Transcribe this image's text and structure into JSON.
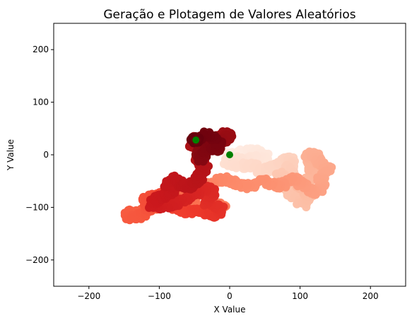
{
  "chart_data": {
    "type": "scatter",
    "title": "Geração e Plotagem de Valores Aleatórios",
    "xlabel": "X Value",
    "ylabel": "Y Value",
    "xlim": [
      -250,
      250
    ],
    "ylim": [
      -250,
      250
    ],
    "x_ticks": [
      -200,
      -100,
      0,
      100,
      200
    ],
    "y_ticks": [
      -200,
      -100,
      0,
      100,
      200
    ],
    "x_tick_labels": [
      "−200",
      "−100",
      "0",
      "100",
      "200"
    ],
    "y_tick_labels": [
      "−200",
      "−100",
      "0",
      "100",
      "200"
    ],
    "grid": false,
    "legend": "none",
    "colormap": "Reds",
    "colormap_stops": [
      "#fff5f0",
      "#fee0d2",
      "#fcbba1",
      "#fc9272",
      "#fb6a4a",
      "#ef3b2c",
      "#cb181d",
      "#a50f15",
      "#67000d"
    ],
    "walk_path": [
      [
        0,
        0
      ],
      [
        10,
        5
      ],
      [
        20,
        2
      ],
      [
        30,
        8
      ],
      [
        40,
        5
      ],
      [
        50,
        -2
      ],
      [
        45,
        -10
      ],
      [
        35,
        -5
      ],
      [
        25,
        -12
      ],
      [
        15,
        -8
      ],
      [
        5,
        -15
      ],
      [
        -5,
        -10
      ],
      [
        5,
        -20
      ],
      [
        20,
        -22
      ],
      [
        30,
        -18
      ],
      [
        45,
        -30
      ],
      [
        60,
        -25
      ],
      [
        75,
        -10
      ],
      [
        85,
        -5
      ],
      [
        90,
        -15
      ],
      [
        80,
        -25
      ],
      [
        90,
        -40
      ],
      [
        80,
        -50
      ],
      [
        70,
        -35
      ],
      [
        75,
        -55
      ],
      [
        85,
        -70
      ],
      [
        95,
        -85
      ],
      [
        105,
        -95
      ],
      [
        115,
        -80
      ],
      [
        110,
        -70
      ],
      [
        100,
        -60
      ],
      [
        110,
        -50
      ],
      [
        120,
        -35
      ],
      [
        115,
        -15
      ],
      [
        110,
        0
      ],
      [
        120,
        2
      ],
      [
        125,
        -10
      ],
      [
        135,
        -20
      ],
      [
        140,
        -30
      ],
      [
        130,
        -45
      ],
      [
        130,
        -60
      ],
      [
        125,
        -70
      ],
      [
        115,
        -70
      ],
      [
        105,
        -60
      ],
      [
        100,
        -50
      ],
      [
        90,
        -45
      ],
      [
        80,
        -55
      ],
      [
        70,
        -60
      ],
      [
        60,
        -55
      ],
      [
        45,
        -50
      ],
      [
        30,
        -60
      ],
      [
        15,
        -55
      ],
      [
        0,
        -50
      ],
      [
        -15,
        -45
      ],
      [
        -25,
        -55
      ],
      [
        -30,
        -65
      ],
      [
        -25,
        -75
      ],
      [
        -30,
        -90
      ],
      [
        -20,
        -95
      ],
      [
        -10,
        -100
      ],
      [
        -20,
        -105
      ],
      [
        -35,
        -105
      ],
      [
        -50,
        -100
      ],
      [
        -55,
        -85
      ],
      [
        -50,
        -75
      ],
      [
        -60,
        -70
      ],
      [
        -75,
        -75
      ],
      [
        -85,
        -80
      ],
      [
        -95,
        -95
      ],
      [
        -110,
        -100
      ],
      [
        -125,
        -105
      ],
      [
        -135,
        -110
      ],
      [
        -145,
        -110
      ],
      [
        -140,
        -120
      ],
      [
        -125,
        -115
      ],
      [
        -115,
        -105
      ],
      [
        -115,
        -95
      ],
      [
        -120,
        -85
      ],
      [
        -110,
        -80
      ],
      [
        -100,
        -75
      ],
      [
        -95,
        -85
      ],
      [
        -85,
        -95
      ],
      [
        -80,
        -100
      ],
      [
        -70,
        -105
      ],
      [
        -60,
        -110
      ],
      [
        -50,
        -105
      ],
      [
        -40,
        -110
      ],
      [
        -30,
        -108
      ],
      [
        -25,
        -115
      ],
      [
        -15,
        -112
      ],
      [
        -10,
        -105
      ],
      [
        -20,
        -95
      ],
      [
        -35,
        -90
      ],
      [
        -30,
        -80
      ],
      [
        -25,
        -70
      ],
      [
        -35,
        -65
      ],
      [
        -45,
        -70
      ],
      [
        -55,
        -75
      ],
      [
        -65,
        -85
      ],
      [
        -75,
        -90
      ],
      [
        -85,
        -95
      ],
      [
        -100,
        -100
      ],
      [
        -110,
        -95
      ],
      [
        -105,
        -85
      ],
      [
        -95,
        -80
      ],
      [
        -85,
        -75
      ],
      [
        -80,
        -65
      ],
      [
        -90,
        -55
      ],
      [
        -80,
        -45
      ],
      [
        -70,
        -55
      ],
      [
        -60,
        -60
      ],
      [
        -50,
        -55
      ],
      [
        -45,
        -45
      ],
      [
        -40,
        -35
      ],
      [
        -35,
        -25
      ],
      [
        -40,
        -15
      ],
      [
        -45,
        -5
      ],
      [
        -40,
        5
      ],
      [
        -50,
        15
      ],
      [
        -55,
        25
      ],
      [
        -45,
        32
      ],
      [
        -35,
        25
      ],
      [
        -25,
        30
      ],
      [
        -15,
        35
      ],
      [
        -5,
        40
      ],
      [
        0,
        35
      ],
      [
        -10,
        28
      ],
      [
        -20,
        20
      ],
      [
        -30,
        15
      ],
      [
        -40,
        10
      ],
      [
        -45,
        0
      ],
      [
        -40,
        -8
      ],
      [
        -35,
        5
      ],
      [
        -28,
        15
      ],
      [
        -20,
        10
      ],
      [
        -15,
        25
      ],
      [
        -25,
        35
      ],
      [
        -35,
        38
      ],
      [
        -45,
        33
      ],
      [
        -50,
        25
      ],
      [
        -48,
        28
      ]
    ],
    "highlight_points": [
      {
        "x": 0,
        "y": 0,
        "color": "#008000"
      },
      {
        "x": -48,
        "y": 28,
        "color": "#008000"
      }
    ]
  }
}
